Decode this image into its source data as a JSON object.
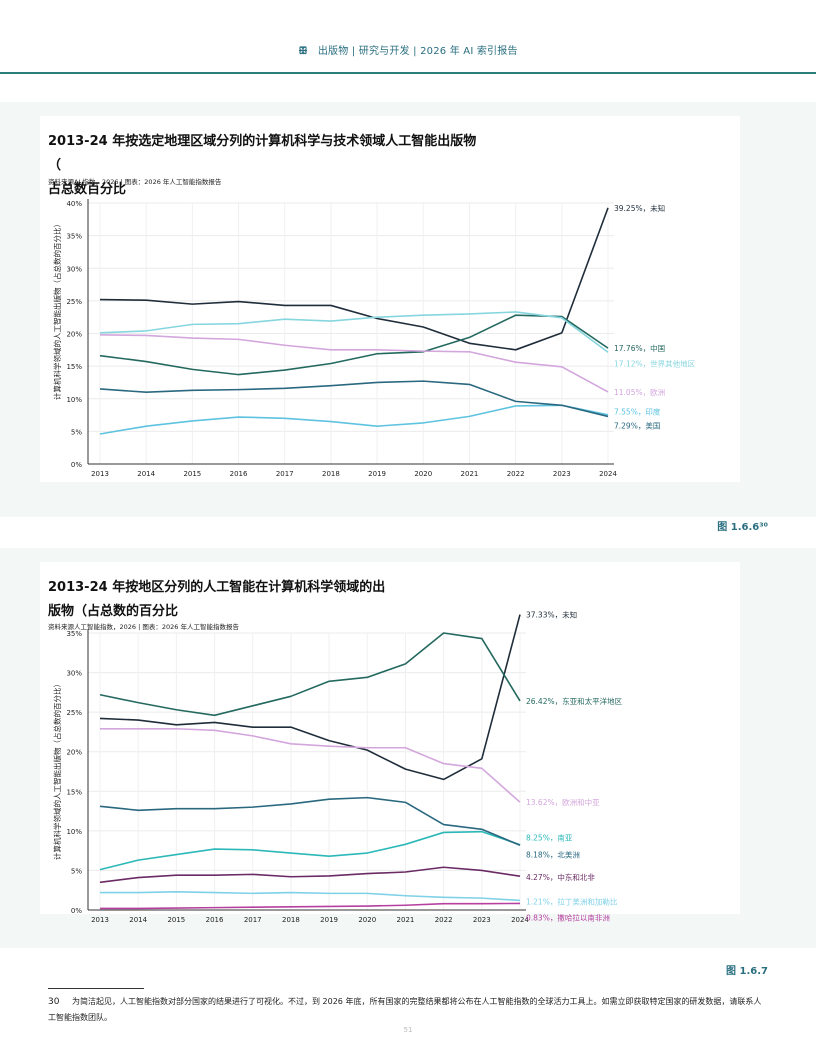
{
  "header": {
    "icon": "ꕥ",
    "text": "出版物 | 研究与开发 | 2026 年 AI 索引报告"
  },
  "figures": [
    {
      "figure_label": "图 1.6.6³⁰",
      "title_line1": "2013-24 年按选定地理区域分列的计算机科学与技术领域人工智能出版物（",
      "title_line2": "占总数百分比",
      "source": "资料来源AI 指数，2026 | 图表：2026 年人工智能指数报告"
    },
    {
      "figure_label": "图 1.6.7",
      "title_line1": "2013-24 年按地区分列的人工智能在计算机科学领域的出",
      "title_line2": "版物（占总数的百分比",
      "source": "资料来源人工智能指数，2026 | 图表：2026 年人工智能指数报告"
    }
  ],
  "chart_data": [
    {
      "type": "line",
      "ylabel": "计算机科学领域的人工智能出版物（占总数的百分比）",
      "x": [
        2013,
        2014,
        2015,
        2016,
        2017,
        2018,
        2019,
        2020,
        2021,
        2022,
        2023,
        2024
      ],
      "yticks": [
        0,
        5,
        10,
        15,
        20,
        25,
        30,
        35,
        40
      ],
      "ytick_labels": [
        "0%",
        "5%",
        "10%",
        "15%",
        "20%",
        "25%",
        "30%",
        "35%",
        "40%"
      ],
      "ylim": [
        0,
        40
      ],
      "series": [
        {
          "name": "未知",
          "label": "39.25%，未知",
          "color": "#1f2d3a",
          "values": [
            25.2,
            25.1,
            24.5,
            24.9,
            24.3,
            24.3,
            22.3,
            21.0,
            18.5,
            17.5,
            20.1,
            39.25
          ]
        },
        {
          "name": "中国",
          "label": "17.76%，中国",
          "color": "#24695f",
          "values": [
            16.6,
            15.7,
            14.5,
            13.7,
            14.4,
            15.4,
            16.9,
            17.2,
            19.4,
            22.8,
            22.6,
            17.76
          ]
        },
        {
          "name": "世界其他地区",
          "label": "17.12%，世界其他地区",
          "color": "#86d6df",
          "values": [
            20.1,
            20.4,
            21.4,
            21.5,
            22.2,
            21.9,
            22.5,
            22.8,
            23.0,
            23.3,
            22.4,
            17.12
          ]
        },
        {
          "name": "欧洲",
          "label": "11.05%，欧洲",
          "color": "#d3a6dd",
          "values": [
            19.8,
            19.7,
            19.3,
            19.1,
            18.2,
            17.5,
            17.5,
            17.3,
            17.2,
            15.6,
            14.9,
            11.05
          ]
        },
        {
          "name": "印度",
          "label": "7.55%，印度",
          "color": "#5ec3e0",
          "values": [
            4.6,
            5.8,
            6.6,
            7.2,
            7.0,
            6.5,
            5.8,
            6.3,
            7.3,
            8.9,
            9.0,
            7.55
          ]
        },
        {
          "name": "美国",
          "label": "7.29%，美国",
          "color": "#2a6880",
          "values": [
            11.5,
            11.0,
            11.3,
            11.4,
            11.6,
            12.0,
            12.5,
            12.7,
            12.2,
            9.6,
            9.0,
            7.29
          ]
        }
      ]
    },
    {
      "type": "line",
      "ylabel": "计算机科学领域的人工智能出版物（占总数的百分比）",
      "x": [
        2013,
        2014,
        2015,
        2016,
        2017,
        2018,
        2019,
        2020,
        2021,
        2022,
        2023,
        2024
      ],
      "yticks": [
        0,
        5,
        10,
        15,
        20,
        25,
        30,
        35
      ],
      "ytick_labels": [
        "0%",
        "5%",
        "10%",
        "15%",
        "20%",
        "25%",
        "30%",
        "35%"
      ],
      "ylim": [
        0,
        35
      ],
      "series": [
        {
          "name": "未知",
          "label": "37.33%，未知",
          "color": "#1f2d3a",
          "values": [
            24.2,
            24.0,
            23.4,
            23.7,
            23.1,
            23.1,
            21.4,
            20.2,
            17.8,
            16.5,
            19.1,
            37.33
          ]
        },
        {
          "name": "东亚和太平洋地区",
          "label": "26.42%，东亚和太平洋地区",
          "color": "#24695f",
          "values": [
            27.2,
            26.2,
            25.3,
            24.6,
            25.8,
            27.0,
            28.9,
            29.4,
            31.1,
            35.0,
            34.3,
            26.42
          ]
        },
        {
          "name": "欧洲和中亚",
          "label": "13.62%，欧洲和中亚",
          "color": "#d3a6dd",
          "values": [
            22.9,
            22.9,
            22.9,
            22.7,
            22.0,
            21.0,
            20.7,
            20.5,
            20.5,
            18.5,
            17.9,
            13.62
          ]
        },
        {
          "name": "南亚",
          "label": "8.25%，南亚",
          "color": "#2cb8b8",
          "values": [
            5.1,
            6.3,
            7.0,
            7.7,
            7.6,
            7.2,
            6.8,
            7.2,
            8.3,
            9.8,
            9.9,
            8.25
          ]
        },
        {
          "name": "北美洲",
          "label": "8.18%，北美洲",
          "color": "#2a6880",
          "values": [
            13.1,
            12.6,
            12.8,
            12.8,
            13.0,
            13.4,
            14.0,
            14.2,
            13.6,
            10.8,
            10.2,
            8.18
          ]
        },
        {
          "name": "中东和北非",
          "label": "4.27%，中东和北非",
          "color": "#6a2a64",
          "values": [
            3.5,
            4.1,
            4.4,
            4.4,
            4.5,
            4.2,
            4.3,
            4.6,
            4.8,
            5.4,
            5.0,
            4.27
          ]
        },
        {
          "name": "拉丁美洲和加勒比",
          "label": "1.21%，拉丁美洲和加勒比",
          "color": "#7fd1e8",
          "values": [
            2.2,
            2.2,
            2.3,
            2.2,
            2.1,
            2.2,
            2.1,
            2.1,
            1.8,
            1.6,
            1.5,
            1.21
          ]
        },
        {
          "name": "撒哈拉以南非洲",
          "label": "0.83%，撒哈拉以南非洲",
          "color": "#b5409f",
          "values": [
            0.2,
            0.2,
            0.25,
            0.3,
            0.35,
            0.4,
            0.45,
            0.5,
            0.6,
            0.8,
            0.8,
            0.83
          ]
        }
      ]
    }
  ],
  "footnote": {
    "number": "30",
    "text": "为简洁起见，人工智能指数对部分国家的结果进行了可视化。不过，到 2026 年底，所有国家的完整结果都将公布在人工智能指数的全球活力工具上。如需立即获取特定国家的研发数据，请联系人工智能指数团队。"
  },
  "page_number": "51"
}
